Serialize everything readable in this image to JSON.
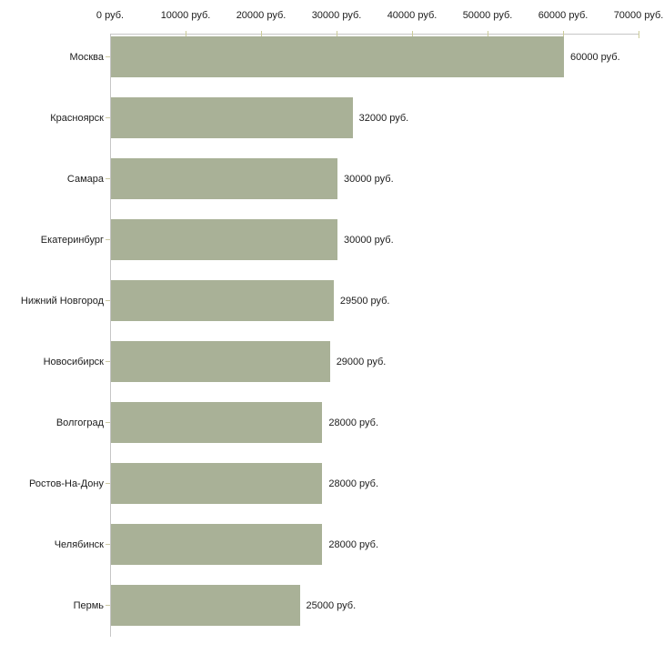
{
  "chart_data": {
    "type": "bar",
    "orientation": "horizontal",
    "title": "",
    "xlabel": "",
    "ylabel": "",
    "unit": "руб.",
    "xlim": [
      0,
      70000
    ],
    "grid": false,
    "legend": false,
    "axis_position": "top",
    "categories": [
      "Москва",
      "Красноярск",
      "Самара",
      "Екатеринбург",
      "Нижний Новгород",
      "Новосибирск",
      "Волгоград",
      "Ростов-На-Дону",
      "Челябинск",
      "Пермь"
    ],
    "values": [
      60000,
      32000,
      30000,
      30000,
      29500,
      29000,
      28000,
      28000,
      28000,
      25000
    ],
    "value_labels": [
      "60000 руб.",
      "32000 руб.",
      "30000 руб.",
      "30000 руб.",
      "29500 руб.",
      "29000 руб.",
      "28000 руб.",
      "28000 руб.",
      "28000 руб.",
      "25000 руб."
    ],
    "x_ticks": [
      0,
      10000,
      20000,
      30000,
      40000,
      50000,
      60000,
      70000
    ],
    "x_tick_labels": [
      "0 руб.",
      "10000 руб.",
      "20000 руб.",
      "30000 руб.",
      "40000 руб.",
      "50000 руб.",
      "60000 руб.",
      "70000 руб."
    ]
  },
  "colors": {
    "bar": "#a9b197",
    "axis_line": "#c6c6c6",
    "x_tick_mark": "#cccc99",
    "y_tick_mark": "#ccc9a3",
    "text": "#1c1c1c",
    "background": "#ffffff"
  }
}
